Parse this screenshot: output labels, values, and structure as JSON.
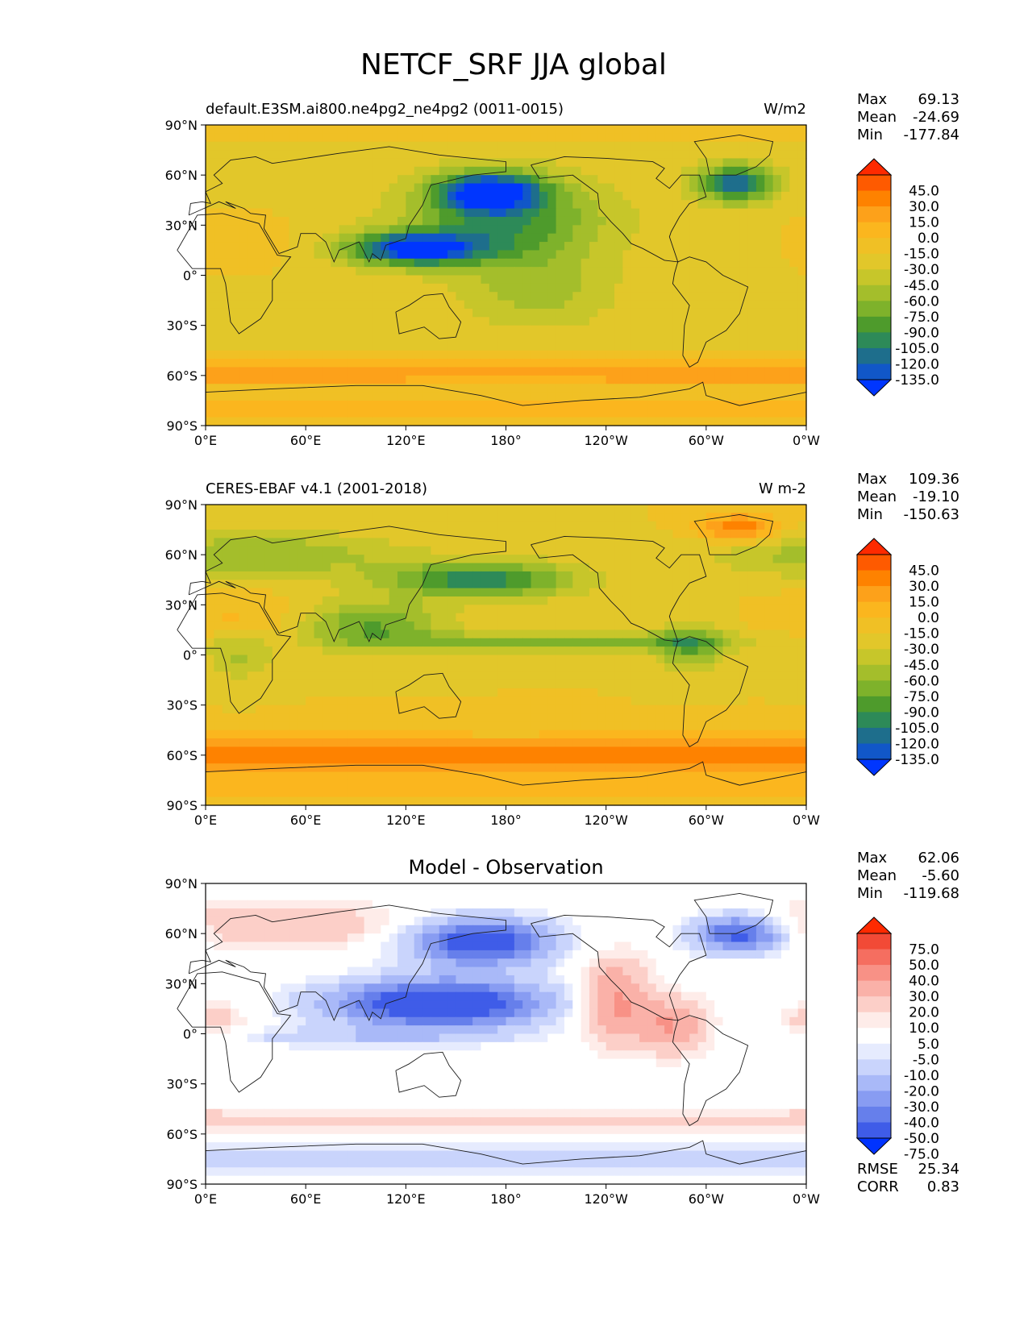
{
  "figure": {
    "title": "NETCF_SRF JJA global"
  },
  "axes": {
    "lat_ticks": [
      "90°N",
      "60°N",
      "30°N",
      "0°",
      "30°S",
      "60°S",
      "90°S"
    ],
    "lon_ticks": [
      "0°E",
      "60°E",
      "120°E",
      "180°",
      "120°W",
      "60°W",
      "0°W"
    ]
  },
  "stat_labels": {
    "max": "Max",
    "mean": "Mean",
    "min": "Min",
    "rmse": "RMSE",
    "corr": "CORR"
  },
  "panels": [
    {
      "title_left": "default.E3SM.ai800.ne4pg2_ne4pg2 (0011-0015)",
      "title_center": "",
      "title_right": "W/m2",
      "stats": {
        "max": "69.13",
        "mean": "-24.69",
        "min": "-177.84"
      },
      "levels": [
        "45.0",
        "30.0",
        "15.0",
        "0.0",
        "-15.0",
        "-30.0",
        "-45.0",
        "-60.0",
        "-75.0",
        "-90.0",
        "-105.0",
        "-120.0",
        "-135.0"
      ],
      "colors": [
        "#fe2a00",
        "#fe5a00",
        "#fe8200",
        "#fda11a",
        "#fbb61e",
        "#f0c025",
        "#e2c72a",
        "#c7c62a",
        "#a4be2b",
        "#7eb22b",
        "#4e9b2c",
        "#2d8a58",
        "#1e6e8c",
        "#1157c8",
        "#0036fe"
      ]
    },
    {
      "title_left": "CERES-EBAF v4.1 (2001-2018)",
      "title_center": "",
      "title_right": "W m-2",
      "stats": {
        "max": "109.36",
        "mean": "-19.10",
        "min": "-150.63"
      },
      "levels": [
        "45.0",
        "30.0",
        "15.0",
        "0.0",
        "-15.0",
        "-30.0",
        "-45.0",
        "-60.0",
        "-75.0",
        "-90.0",
        "-105.0",
        "-120.0",
        "-135.0"
      ],
      "colors": [
        "#fe2a00",
        "#fe5a00",
        "#fe8200",
        "#fda11a",
        "#fbb61e",
        "#f0c025",
        "#e2c72a",
        "#c7c62a",
        "#a4be2b",
        "#7eb22b",
        "#4e9b2c",
        "#2d8a58",
        "#1e6e8c",
        "#1157c8",
        "#0036fe"
      ]
    },
    {
      "title_left": "",
      "title_center": "Model - Observation",
      "title_right": "",
      "stats": {
        "max": "62.06",
        "mean": "-5.60",
        "min": "-119.68",
        "rmse": "25.34",
        "corr": "0.83"
      },
      "levels": [
        "75.0",
        "50.0",
        "40.0",
        "30.0",
        "20.0",
        "10.0",
        "5.0",
        "-5.0",
        "-10.0",
        "-20.0",
        "-30.0",
        "-40.0",
        "-50.0",
        "-75.0"
      ],
      "colors": [
        "#fe2a00",
        "#f24a36",
        "#f56e60",
        "#f89186",
        "#fab1a8",
        "#fccfc8",
        "#feece9",
        "#ffffff",
        "#e6ebfe",
        "#c9d4fc",
        "#a9b9f8",
        "#889cf2",
        "#667feb",
        "#3f5ce8",
        "#0033fe"
      ]
    }
  ],
  "chart_data": [
    {
      "type": "heatmap",
      "title": "default.E3SM.ai800.ne4pg2_ne4pg2 (0011-0015)",
      "units": "W/m2",
      "x_range": [
        "0°E",
        "0°W"
      ],
      "y_range": [
        "90°S",
        "90°N"
      ],
      "stats": {
        "max": 69.13,
        "mean": -24.69,
        "min": -177.84
      },
      "contour_levels": [
        -135,
        -120,
        -105,
        -90,
        -75,
        -60,
        -45,
        -30,
        -15,
        0,
        15,
        30,
        45
      ],
      "colorbar_extend": "both"
    },
    {
      "type": "heatmap",
      "title": "CERES-EBAF v4.1 (2001-2018)",
      "units": "W m-2",
      "x_range": [
        "0°E",
        "0°W"
      ],
      "y_range": [
        "90°S",
        "90°N"
      ],
      "stats": {
        "max": 109.36,
        "mean": -19.1,
        "min": -150.63
      },
      "contour_levels": [
        -135,
        -120,
        -105,
        -90,
        -75,
        -60,
        -45,
        -30,
        -15,
        0,
        15,
        30,
        45
      ],
      "colorbar_extend": "both"
    },
    {
      "type": "heatmap",
      "title": "Model - Observation",
      "x_range": [
        "0°E",
        "0°W"
      ],
      "y_range": [
        "90°S",
        "90°N"
      ],
      "stats": {
        "max": 62.06,
        "mean": -5.6,
        "min": -119.68,
        "rmse": 25.34,
        "corr": 0.83
      },
      "contour_levels": [
        -75,
        -50,
        -40,
        -30,
        -20,
        -10,
        -5,
        5,
        10,
        20,
        30,
        40,
        50,
        75
      ],
      "colorbar_extend": "both"
    }
  ]
}
